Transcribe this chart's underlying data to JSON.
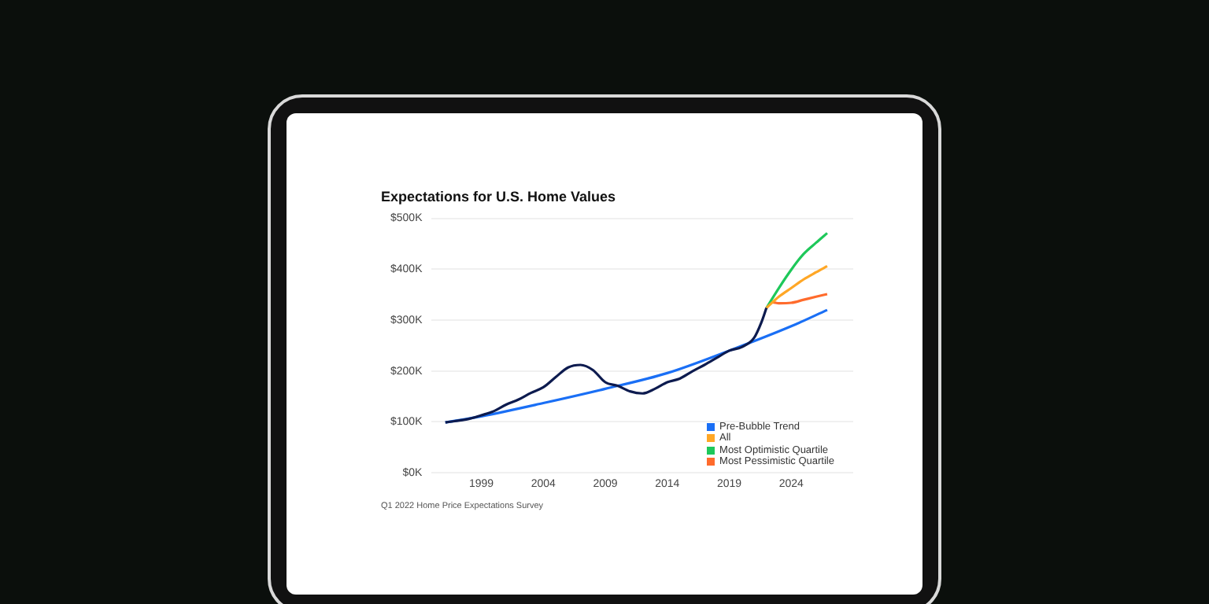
{
  "chart_data": {
    "type": "line",
    "title": "Expectations for U.S. Home Values",
    "annotations": [
      "Q1 2022 Home Price Expectations Survey"
    ],
    "xlim": [
      1995,
      2029
    ],
    "xticks": [
      1999,
      2004,
      2009,
      2014,
      2019,
      2024
    ],
    "ylim": [
      0,
      500
    ],
    "yticks": [
      {
        "value": 0,
        "label": "$0K"
      },
      {
        "value": 100,
        "label": "$100K"
      },
      {
        "value": 200,
        "label": "$200K"
      },
      {
        "value": 300,
        "label": "$300K"
      },
      {
        "value": 400,
        "label": "$400K"
      },
      {
        "value": 500,
        "label": "$500K"
      }
    ],
    "grid": "y",
    "legend": "bottom right",
    "marker": "none",
    "line_style": "solid",
    "series": [
      {
        "color": "#0d1b4f",
        "x": [
          1996.1,
          1998,
          1999,
          2000,
          2001,
          2002,
          2003,
          2004,
          2005,
          2006,
          2007,
          2008,
          2009,
          2010,
          2011,
          2012,
          2013,
          2014,
          2015,
          2016,
          2017,
          2018,
          2019,
          2020,
          2021,
          2021.6,
          2022
        ],
        "values": [
          99,
          106,
          113,
          121,
          134,
          144,
          157,
          168,
          188,
          207,
          212,
          202,
          178,
          171,
          160,
          156,
          165,
          178,
          185,
          199,
          212,
          226,
          240,
          247,
          265,
          296,
          324
        ]
      },
      {
        "name": "Pre-Bubble Trend",
        "color": "#1a6ff5",
        "x": [
          1996.1,
          1999,
          2004,
          2009,
          2014,
          2019,
          2024,
          2026.9
        ],
        "values": [
          99,
          111,
          137,
          165,
          196,
          240,
          288,
          320
        ]
      },
      {
        "name": "All",
        "color": "#ffa726",
        "x": [
          2022,
          2023,
          2024,
          2025,
          2026,
          2026.9
        ],
        "values": [
          324,
          346,
          363,
          380,
          394,
          406
        ]
      },
      {
        "name": "Most Optimistic Quartile",
        "color": "#1ec85a",
        "x": [
          2022,
          2023,
          2024,
          2025,
          2026,
          2026.9
        ],
        "values": [
          324,
          363,
          399,
          430,
          452,
          471
        ]
      },
      {
        "name": "Most Pessimistic Quartile",
        "color": "#ff6b2c",
        "x": [
          2022,
          2022.5,
          2023,
          2024,
          2025,
          2026,
          2026.9
        ],
        "values": [
          324,
          335,
          333,
          334,
          340,
          346,
          351
        ]
      }
    ]
  }
}
